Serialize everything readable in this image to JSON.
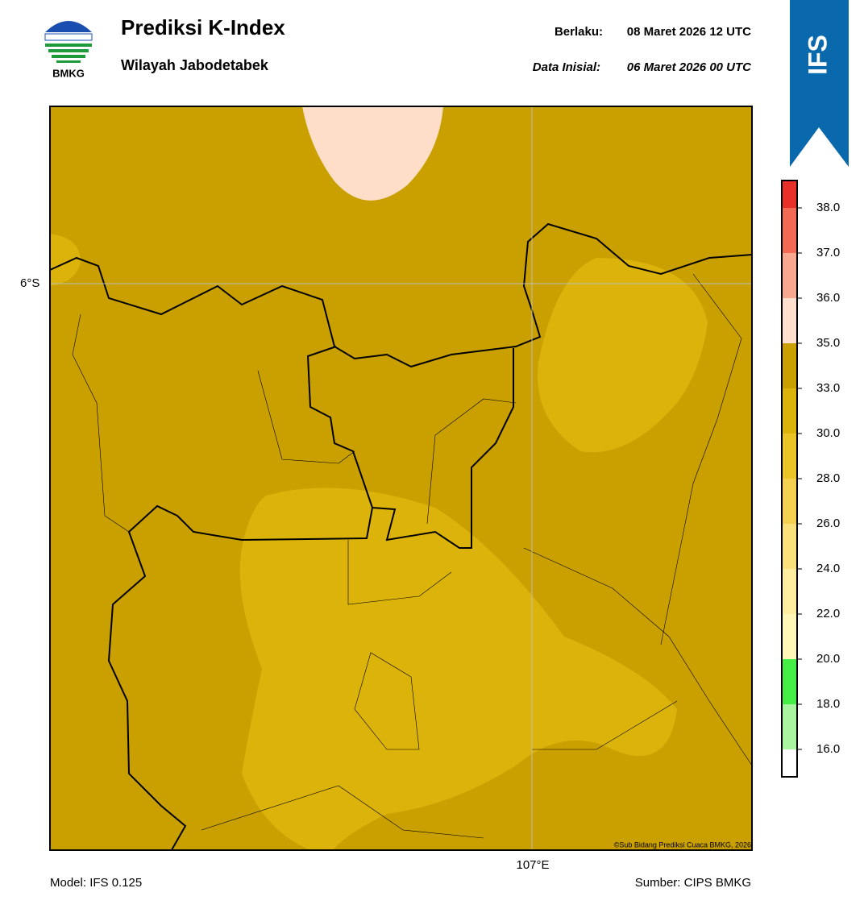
{
  "header": {
    "title": "Prediksi K-Index",
    "subtitle": "Wilayah Jabodetabek",
    "logo_text": "BMKG",
    "valid_label": "Berlaku:",
    "valid_time": "08 Maret 2026 12 UTC",
    "init_label": "Data Inisial:",
    "init_time": "06 Maret 2026 00 UTC",
    "badge": "IFS"
  },
  "map": {
    "lat_label": "6°S",
    "lon_label": "107°E",
    "credit": "©Sub Bidang Prediksi Cuaca BMKG, 2026"
  },
  "colorbar": {
    "ticks": [
      {
        "value": 16,
        "label": "16.0"
      },
      {
        "value": 18,
        "label": "18.0"
      },
      {
        "value": 20,
        "label": "20.0"
      },
      {
        "value": 22,
        "label": "22.0"
      },
      {
        "value": 24,
        "label": "24.0"
      },
      {
        "value": 26,
        "label": "26.0"
      },
      {
        "value": 28,
        "label": "28.0"
      },
      {
        "value": 30,
        "label": "30.0"
      },
      {
        "value": 33,
        "label": "33.0"
      },
      {
        "value": 35,
        "label": "35.0"
      },
      {
        "value": 36,
        "label": "36.0"
      },
      {
        "value": 37,
        "label": "37.0"
      },
      {
        "value": 38,
        "label": "38.0"
      }
    ],
    "colors": [
      "#ffffff",
      "#a8f5a0",
      "#44ee44",
      "#fff6b8",
      "#ffeda0",
      "#f9e07a",
      "#f3d050",
      "#ebc428",
      "#dcb30a",
      "#c9a000",
      "#ffe0d0",
      "#f9a890",
      "#f26a55",
      "#e8302a"
    ]
  },
  "footer": {
    "model": "Model: IFS 0.125",
    "source": "Sumber: CIPS BMKG"
  }
}
